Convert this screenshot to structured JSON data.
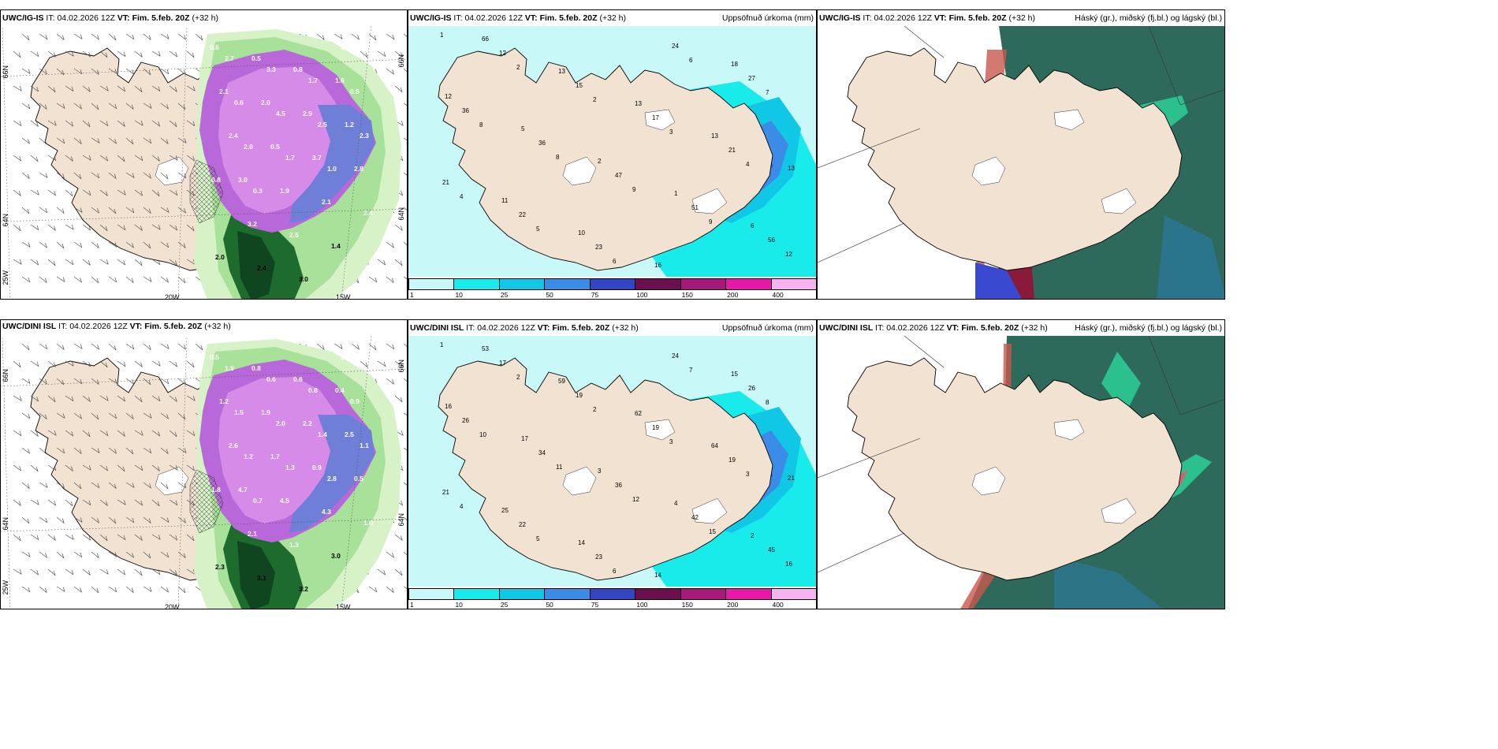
{
  "panels": [
    {
      "source": "UWC/IG-IS",
      "it_label": "IT:",
      "it": "04.02.2026 12Z",
      "vt_label": "VT:",
      "vt": "Fim. 5.feb. 20Z",
      "lead": "(+32 h)",
      "right": ""
    },
    {
      "source": "UWC/IG-IS",
      "it_label": "IT:",
      "it": "04.02.2026 12Z",
      "vt_label": "VT:",
      "vt": "Fim. 5.feb. 20Z",
      "lead": "(+32 h)",
      "right": "Uppsöfnuð úrkoma (mm)"
    },
    {
      "source": "UWC/IG-IS",
      "it_label": "IT:",
      "it": "04.02.2026 12Z",
      "vt_label": "VT:",
      "vt": "Fim. 5.feb. 20Z",
      "lead": "(+32 h)",
      "right": "Háský (gr.), miðský (fj.bl.) og lágský (bl.)"
    },
    {
      "source": "UWC/DINI ISL",
      "it_label": "IT:",
      "it": "04.02.2026 12Z",
      "vt_label": "VT:",
      "vt": "Fim. 5.feb. 20Z",
      "lead": "(+32 h)",
      "right": ""
    },
    {
      "source": "UWC/DINI ISL",
      "it_label": "IT:",
      "it": "04.02.2026 12Z",
      "vt_label": "VT:",
      "vt": "Fim. 5.feb. 20Z",
      "lead": "(+32 h)",
      "right": "Uppsöfnuð úrkoma (mm)"
    },
    {
      "source": "UWC/DINI ISL",
      "it_label": "IT:",
      "it": "04.02.2026 12Z",
      "vt_label": "VT:",
      "vt": "Fim. 5.feb. 20Z",
      "lead": "(+32 h)",
      "right": "Háský (gr.), miðský (fj.bl.) og lágský (bl.)"
    }
  ],
  "axis_labels": {
    "lat66": "66N",
    "lat64": "64N",
    "lon25": "25W",
    "lon20": "20W",
    "lon15": "15W"
  },
  "colorbar": {
    "ticks": [
      "1",
      "10",
      "25",
      "50",
      "75",
      "100",
      "150",
      "200",
      "400"
    ],
    "colors": [
      "#c8f8f8",
      "#19ebeb",
      "#10c8e6",
      "#3a8ce6",
      "#3346c2",
      "#6b0f4f",
      "#a51a78",
      "#e619a8",
      "#f5b4f0"
    ]
  },
  "precip_values_top": [
    "1",
    "2",
    "2",
    "3",
    "4",
    "4",
    "5",
    "6",
    "6",
    "7",
    "8",
    "8",
    "9",
    "9",
    "12",
    "12",
    "15",
    "17",
    "21",
    "21",
    "22",
    "23",
    "24",
    "27",
    "36",
    "36",
    "47",
    "51",
    "56",
    "66",
    "13",
    "13",
    "13",
    "13",
    "11",
    "10",
    "16",
    "18",
    "12",
    "5",
    "2",
    "1",
    "6"
  ],
  "precip_values_bottom": [
    "1",
    "2",
    "2",
    "3",
    "3",
    "4",
    "5",
    "6",
    "7",
    "8",
    "10",
    "11",
    "12",
    "15",
    "16",
    "17",
    "19",
    "19",
    "19",
    "21",
    "22",
    "23",
    "24",
    "26",
    "26",
    "34",
    "36",
    "42",
    "45",
    "53",
    "59",
    "62",
    "64",
    "21",
    "25",
    "14",
    "14",
    "15",
    "16",
    "17",
    "3",
    "4",
    "2"
  ],
  "snow_values_top": [
    "0.6",
    "0.5",
    "0.8",
    "1.6",
    "2.1",
    "2.0",
    "2.9",
    "1.2",
    "2.4",
    "0.5",
    "3.7",
    "2.8",
    "3.0",
    "1.9",
    "2.1",
    "2.4",
    "3.2",
    "2.5",
    "1.4",
    "2.0",
    "2.4",
    "3.0",
    "2.9",
    "2.7",
    "3.3",
    "1.7",
    "0.5",
    "0.6",
    "4.5",
    "2.5",
    "2.3",
    "2.0",
    "1.7",
    "1.0",
    "0.8",
    "0.3"
  ],
  "snow_values_bottom": [
    "0.5",
    "0.8",
    "0.6",
    "0.4",
    "1.2",
    "1.9",
    "2.2",
    "2.5",
    "2.6",
    "1.7",
    "0.9",
    "0.5",
    "4.7",
    "4.5",
    "4.3",
    "1.6",
    "2.1",
    "1.3",
    "3.0",
    "2.3",
    "3.1",
    "3.2",
    "3.6",
    "1.9",
    "0.6",
    "0.8",
    "0.9",
    "1.5",
    "2.0",
    "1.4",
    "1.1",
    "1.2",
    "1.3",
    "2.8",
    "1.8",
    "0.7"
  ],
  "colors": {
    "land": "#f2e2d2",
    "sea": "#ffffff"
  }
}
